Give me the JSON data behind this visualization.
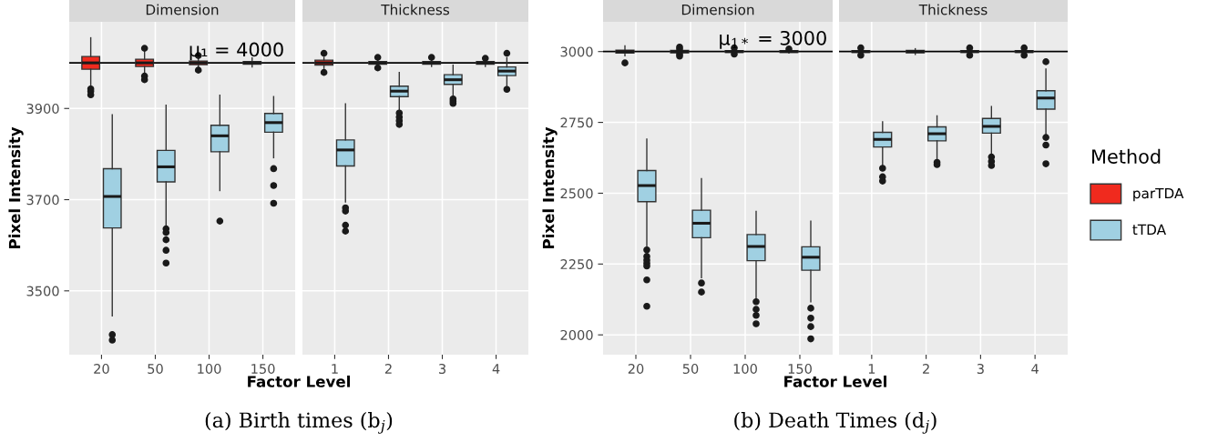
{
  "chart_data": [
    {
      "type": "box",
      "title": "Dimension",
      "categories": [
        "20",
        "50",
        "100",
        "150"
      ],
      "ylabel": "Pixel Intensity",
      "xlabel": "Factor Level",
      "annotations": [
        "(a) Birth times (b$_{j}$)"
      ],
      "ylim": [
        3360,
        4090
      ],
      "yticks": [
        3500,
        3700,
        3900
      ],
      "grid": true,
      "legend": "right",
      "legend_title": "Method",
      "ref_lines": [
        {
          "axis": "y",
          "value": 4000,
          "label": "μ₁ = 4000",
          "color": "#000000"
        }
      ],
      "series": [
        {
          "name": "parTDA",
          "color": "#f02a1e",
          "boxes": [
            {
              "low": 3948,
              "q1": 3986,
              "median": 4000,
              "q3": 4014,
              "high": 4055,
              "outliers": [
                3943,
                3938,
                3930
              ]
            },
            {
              "low": 3978,
              "q1": 3992,
              "median": 4000,
              "q3": 4008,
              "high": 4024,
              "outliers": [
                4032,
                3971,
                3963
              ]
            },
            {
              "low": 3991,
              "q1": 3996,
              "median": 4000,
              "q3": 4004,
              "high": 4010,
              "outliers": [
                4016,
                3984
              ]
            },
            {
              "low": 3991,
              "q1": 3997,
              "median": 4000,
              "q3": 4003,
              "high": 4011
            }
          ]
        },
        {
          "name": "tTDA",
          "color": "#a0d0e2",
          "boxes": [
            {
              "low": 3445,
              "q1": 3638,
              "median": 3707,
              "q3": 3768,
              "high": 3886,
              "outliers": [
                3404,
                3392
              ]
            },
            {
              "low": 3642,
              "q1": 3739,
              "median": 3772,
              "q3": 3808,
              "high": 3907,
              "outliers": [
                3636,
                3628,
                3612,
                3589,
                3561
              ]
            },
            {
              "low": 3720,
              "q1": 3805,
              "median": 3840,
              "q3": 3863,
              "high": 3929,
              "outliers": [
                3653
              ]
            },
            {
              "low": 3792,
              "q1": 3848,
              "median": 3869,
              "q3": 3889,
              "high": 3926,
              "outliers": [
                3768,
                3731,
                3692
              ]
            }
          ]
        }
      ]
    },
    {
      "type": "box",
      "title": "Thickness",
      "categories": [
        "1",
        "2",
        "3",
        "4"
      ],
      "ylim": [
        3360,
        4090
      ],
      "tick_labels": "x",
      "grid": true,
      "legend": "right",
      "ref_lines": [
        {
          "axis": "y",
          "value": 4000,
          "color": "#000000"
        }
      ],
      "series": [
        {
          "color": "#f02a1e",
          "boxes": [
            {
              "low": 3988,
              "q1": 3995,
              "median": 4000,
              "q3": 4006,
              "high": 4012,
              "outliers": [
                4021,
                3979
              ]
            },
            {
              "low": 3991,
              "q1": 3997,
              "median": 4000,
              "q3": 4003,
              "high": 4009,
              "outliers": [
                4012,
                3989
              ]
            },
            {
              "low": 3992,
              "q1": 3997,
              "median": 4000,
              "q3": 4003,
              "high": 4008,
              "outliers": [
                4012
              ]
            },
            {
              "low": 3992,
              "q1": 3997,
              "median": 4000,
              "q3": 4003,
              "high": 4008,
              "outliers": [
                4010
              ]
            }
          ]
        },
        {
          "color": "#a0d0e2",
          "boxes": [
            {
              "low": 3695,
              "q1": 3774,
              "median": 3809,
              "q3": 3831,
              "high": 3910,
              "outliers": [
                3682,
                3675,
                3644,
                3631
              ]
            },
            {
              "low": 3897,
              "q1": 3926,
              "median": 3938,
              "q3": 3949,
              "high": 3979,
              "outliers": [
                3890,
                3881,
                3873,
                3865
              ]
            },
            {
              "low": 3926,
              "q1": 3953,
              "median": 3963,
              "q3": 3974,
              "high": 3995,
              "outliers": [
                3921,
                3916,
                3911
              ]
            },
            {
              "low": 3949,
              "q1": 3972,
              "median": 3982,
              "q3": 3991,
              "high": 4011,
              "outliers": [
                4021,
                3942
              ]
            }
          ]
        }
      ]
    },
    {
      "type": "box",
      "title": "Dimension",
      "categories": [
        "20",
        "50",
        "100",
        "150"
      ],
      "ylabel": "Pixel Intensity",
      "xlabel": "Factor Level",
      "annotations": [
        "(b) Death Times (d$_{j}$)"
      ],
      "ylim": [
        1930,
        3105
      ],
      "yticks": [
        2000,
        2250,
        2500,
        2750,
        3000
      ],
      "grid": true,
      "legend": "right",
      "ref_lines": [
        {
          "axis": "y",
          "value": 3000,
          "label": "μ$_{1*}$ = 3000",
          "color": "#000000"
        }
      ],
      "series": [
        {
          "color": "#f02a1e",
          "boxes": [
            {
              "low": 2985,
              "q1": 2995,
              "median": 3000,
              "q3": 3005,
              "high": 3020,
              "outliers": [
                2960
              ]
            },
            {
              "low": 2992,
              "q1": 2996,
              "median": 3000,
              "q3": 3004,
              "high": 3008,
              "outliers": [
                3016,
                3009,
                2991,
                2984
              ]
            },
            {
              "low": 2994,
              "q1": 2997,
              "median": 3000,
              "q3": 3003,
              "high": 3006,
              "outliers": [
                3013,
                2991
              ]
            },
            {
              "low": 2995,
              "q1": 2997,
              "median": 3000,
              "q3": 3003,
              "high": 3005,
              "outliers": [
                3009
              ]
            }
          ]
        },
        {
          "color": "#a0d0e2",
          "boxes": [
            {
              "low": 2314,
              "q1": 2470,
              "median": 2527,
              "q3": 2580,
              "high": 2691,
              "outliers": [
                2300,
                2277,
                2264,
                2253,
                2243,
                2194,
                2101
              ]
            },
            {
              "low": 2202,
              "q1": 2343,
              "median": 2394,
              "q3": 2440,
              "high": 2551,
              "outliers": [
                2183,
                2151
              ]
            },
            {
              "low": 2128,
              "q1": 2262,
              "median": 2312,
              "q3": 2354,
              "high": 2436,
              "outliers": [
                2117,
                2090,
                2069,
                2039
              ]
            },
            {
              "low": 2117,
              "q1": 2228,
              "median": 2274,
              "q3": 2311,
              "high": 2401,
              "outliers": [
                2094,
                2059,
                2029,
                1986
              ]
            }
          ]
        }
      ]
    },
    {
      "type": "box",
      "title": "Thickness",
      "categories": [
        "1",
        "2",
        "3",
        "4"
      ],
      "ylim": [
        1930,
        3105
      ],
      "tick_labels": "x",
      "grid": true,
      "legend": "right",
      "ref_lines": [
        {
          "axis": "y",
          "value": 3000,
          "color": "#000000"
        }
      ],
      "series": [
        {
          "color": "#f02a1e",
          "boxes": [
            {
              "low": 2994,
              "q1": 2997,
              "median": 3000,
              "q3": 3003,
              "high": 3006,
              "outliers": [
                3013,
                2987
              ]
            },
            {
              "low": 2990,
              "q1": 2996,
              "median": 3000,
              "q3": 3004,
              "high": 3010
            },
            {
              "low": 2994,
              "q1": 2997,
              "median": 3000,
              "q3": 3003,
              "high": 3006,
              "outliers": [
                3013,
                2987
              ]
            },
            {
              "low": 2994,
              "q1": 2997,
              "median": 3000,
              "q3": 3003,
              "high": 3006,
              "outliers": [
                3013,
                2987
              ]
            }
          ]
        },
        {
          "color": "#a0d0e2",
          "boxes": [
            {
              "low": 2596,
              "q1": 2663,
              "median": 2690,
              "q3": 2715,
              "high": 2752,
              "outliers": [
                2588,
                2558,
                2543
              ]
            },
            {
              "low": 2617,
              "q1": 2685,
              "median": 2710,
              "q3": 2734,
              "high": 2773,
              "outliers": [
                2609,
                2601
              ]
            },
            {
              "low": 2633,
              "q1": 2712,
              "median": 2736,
              "q3": 2764,
              "high": 2806,
              "outliers": [
                2628,
                2612,
                2598
              ]
            },
            {
              "low": 2702,
              "q1": 2797,
              "median": 2836,
              "q3": 2862,
              "high": 2938,
              "outliers": [
                2964,
                2697,
                2670,
                2604
              ]
            }
          ]
        }
      ]
    }
  ]
}
